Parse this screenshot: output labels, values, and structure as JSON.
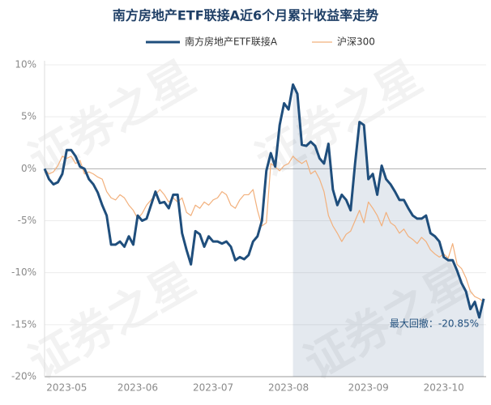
{
  "chart_data": {
    "type": "line",
    "title": "南方房地产ETF联接A近6个月累计收益率走势",
    "watermark": "证券之星",
    "annotation": "最大回撤：-20.85%",
    "categories": [
      null,
      null,
      null,
      null,
      null,
      "2023-05",
      null,
      null,
      null,
      null,
      null,
      null,
      null,
      null,
      null,
      null,
      null,
      null,
      null,
      null,
      null,
      "2023-06",
      null,
      null,
      null,
      null,
      null,
      null,
      null,
      null,
      null,
      null,
      null,
      null,
      null,
      null,
      null,
      null,
      "2023-07",
      null,
      null,
      null,
      null,
      null,
      null,
      null,
      null,
      null,
      null,
      null,
      null,
      null,
      null,
      null,
      null,
      "2023-08",
      null,
      null,
      null,
      null,
      null,
      null,
      null,
      null,
      null,
      null,
      null,
      null,
      null,
      null,
      null,
      null,
      null,
      "2023-09",
      null,
      null,
      null,
      null,
      null,
      null,
      null,
      null,
      null,
      null,
      null,
      null,
      null,
      null,
      null,
      null,
      "2023-10",
      null,
      null,
      null,
      null,
      null,
      null,
      null,
      null,
      null
    ],
    "series": [
      {
        "name": "南方房地产ETF联接A",
        "color": "#1f4e7c",
        "values": [
          0,
          -1,
          -1.5,
          -1.3,
          -0.5,
          1.8,
          1.8,
          1.2,
          0.2,
          0,
          -1,
          -1.5,
          -2.3,
          -3.5,
          -4.5,
          -7.3,
          -7.3,
          -7,
          -7.5,
          -6.5,
          -7.3,
          -4.5,
          -5,
          -4.8,
          -3.5,
          -2.2,
          -3.3,
          -3.2,
          -3.8,
          -2.5,
          -2.5,
          -6.2,
          -7.8,
          -9.2,
          -6,
          -6.3,
          -7.5,
          -6.5,
          -7,
          -7,
          -7.2,
          -7,
          -7.5,
          -8.8,
          -8.5,
          -8.7,
          -8.3,
          -7,
          -6.5,
          -5,
          -0.2,
          1.5,
          0.2,
          4.2,
          6.3,
          5.7,
          8.1,
          7.2,
          2.3,
          2.2,
          2.6,
          2.2,
          1,
          0.5,
          2.4,
          -2,
          -3.5,
          -2.5,
          -3,
          -4,
          0.5,
          4.5,
          4.2,
          -1,
          -0.5,
          -2.5,
          0.3,
          -1,
          -1.5,
          -2.2,
          -3,
          -3,
          -3.8,
          -4.5,
          -4.8,
          -4.8,
          -4.5,
          -6.2,
          -6.5,
          -7,
          -8.5,
          -8.8,
          -8.8,
          -9.8,
          -11,
          -11.8,
          -13.5,
          -12.8,
          -14.3,
          -12.5
        ]
      },
      {
        "name": "沪深300",
        "color": "#f2b07c",
        "values": [
          0,
          -0.5,
          -0.3,
          0.3,
          1.2,
          1,
          1.2,
          0.5,
          0.8,
          -0.5,
          -0.3,
          -0.5,
          -0.8,
          -1,
          -2.2,
          -2.8,
          -3,
          -2.5,
          -2.8,
          -3.5,
          -4,
          -4.8,
          -4.3,
          -3.5,
          -3,
          -2.5,
          -2,
          -2.5,
          -3.2,
          -2.8,
          -3.2,
          -2.8,
          -4.2,
          -4.5,
          -3.5,
          -3.8,
          -3.2,
          -3.5,
          -3,
          -2.8,
          -2.2,
          -2.5,
          -3.5,
          -3.8,
          -3,
          -2.5,
          -2.5,
          -2,
          -4,
          -5.5,
          -5.2,
          0.5,
          0.2,
          -0.2,
          0.3,
          0.5,
          1.2,
          0.8,
          0.5,
          0.8,
          -0.5,
          -0.2,
          -1,
          -2.2,
          -4.5,
          -5.5,
          -6.2,
          -7,
          -6.3,
          -6,
          -5,
          -4,
          -5.2,
          -3.2,
          -3.8,
          -4.5,
          -5.5,
          -4.2,
          -5.2,
          -5.5,
          -6.2,
          -5.8,
          -6.5,
          -6.8,
          -7.2,
          -6.6,
          -7,
          -7.8,
          -8.2,
          -8.5,
          -8.2,
          -8.6,
          -7.2,
          -9.2,
          -9.6,
          -10.5,
          -11.8,
          -12.3,
          -12.5,
          -12.8
        ]
      }
    ],
    "ylim": [
      -20,
      10
    ],
    "yticks": [
      {
        "value": 10,
        "label": "10%"
      },
      {
        "value": 5,
        "label": "5%"
      },
      {
        "value": 0,
        "label": "0%"
      },
      {
        "value": -5,
        "label": "-5%"
      },
      {
        "value": -10,
        "label": "-10%"
      },
      {
        "value": -15,
        "label": "-15%"
      },
      {
        "value": -20,
        "label": "-20%"
      }
    ],
    "grid": true
  }
}
